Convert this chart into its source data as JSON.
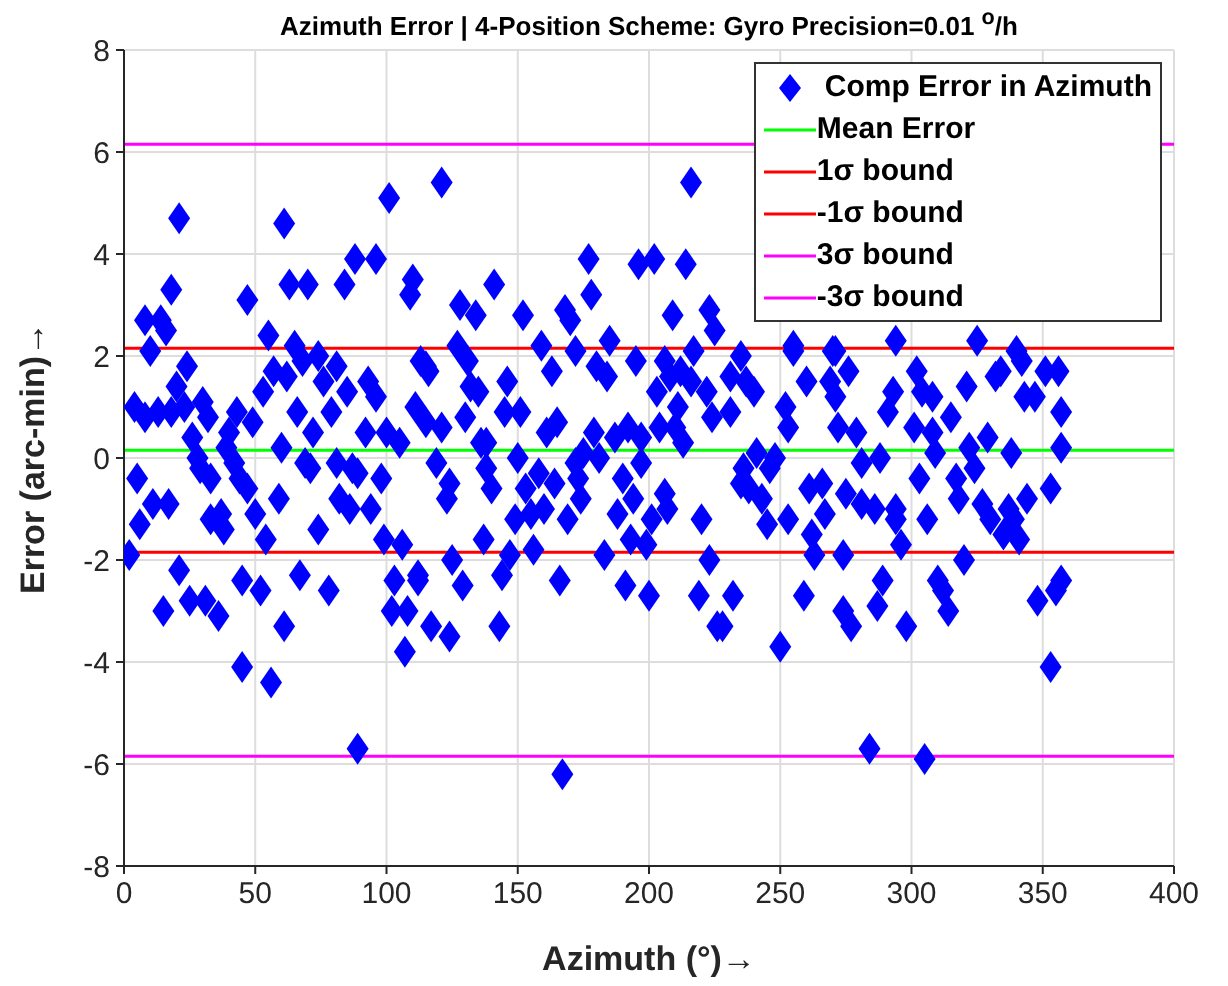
{
  "chart_data": {
    "type": "scatter",
    "title": "Azimuth Error | 4-Position Scheme: Gyro Precision=0.01 $^{o}$/h",
    "xlabel": "Azimuth (°)→",
    "ylabel": "Error (arc-min)→",
    "xlim": [
      0,
      400
    ],
    "xticks": [
      0,
      50,
      100,
      150,
      200,
      250,
      300,
      350,
      400
    ],
    "ylim": [
      -8,
      8
    ],
    "yticks": [
      -8,
      -6,
      -4,
      -2,
      0,
      2,
      4,
      6,
      8
    ],
    "grid": true,
    "legend": "top right",
    "marker": "diamond",
    "series": [
      {
        "name": "Comp Error in Azimuth",
        "color": "#0000ff",
        "x": [
          4,
          2,
          5,
          6,
          8,
          10,
          8,
          11,
          13,
          14,
          15,
          16,
          17,
          18,
          18,
          20,
          21,
          21,
          23,
          24,
          25,
          26,
          28,
          29,
          30,
          31,
          32,
          33,
          33,
          36,
          37,
          38,
          39,
          40,
          42,
          43,
          44,
          45,
          45,
          47,
          47,
          50,
          49,
          52,
          53,
          54,
          55,
          56,
          57,
          59,
          60,
          61,
          61,
          62,
          63,
          65,
          66,
          67,
          68,
          69,
          70,
          71,
          72,
          74,
          74,
          76,
          78,
          79,
          81,
          81,
          82,
          84,
          85,
          86,
          88,
          89,
          87,
          89,
          92,
          93,
          94,
          96,
          96,
          98,
          99,
          101,
          100,
          102,
          103,
          105,
          106,
          107,
          108,
          109,
          110,
          111,
          112,
          113,
          121,
          112,
          115,
          116,
          115,
          117,
          119,
          121,
          123,
          124,
          124,
          125,
          127,
          128,
          129,
          130,
          131,
          132,
          134,
          135,
          136,
          137,
          138,
          138,
          140,
          141,
          143,
          144,
          145,
          146,
          147,
          149,
          150,
          151,
          152,
          153,
          155,
          156,
          158,
          159,
          160,
          161,
          163,
          164,
          165,
          166,
          167,
          169,
          168,
          170,
          172,
          172,
          173,
          174,
          175,
          177,
          178,
          179,
          180,
          181,
          183,
          184,
          185,
          187,
          188,
          190,
          191,
          192,
          194,
          193,
          195,
          196,
          197,
          197,
          199,
          200,
          202,
          201,
          203,
          204,
          206,
          206,
          207,
          208,
          209,
          210,
          211,
          212,
          213,
          214,
          216,
          216,
          217,
          219,
          220,
          222,
          223,
          223,
          224,
          225,
          226,
          228,
          232,
          231,
          231,
          235,
          235,
          236,
          237,
          238,
          240,
          241,
          243,
          245,
          246,
          248,
          250,
          252,
          253,
          253,
          255,
          259,
          260,
          261,
          262,
          263,
          266,
          267,
          269,
          270,
          271,
          272,
          274,
          274,
          275,
          277,
          276,
          279,
          281,
          281,
          284,
          286,
          287,
          288,
          289,
          291,
          293,
          294,
          294,
          296,
          298,
          301,
          302,
          303,
          304,
          305,
          306,
          308,
          308,
          309,
          310,
          312,
          314,
          315,
          317,
          318,
          320,
          321,
          322,
          324,
          327,
          329,
          330,
          332,
          334,
          335,
          337,
          338,
          339,
          341,
          343,
          344,
          342,
          347,
          348,
          353,
          355,
          353,
          357,
          357,
          357,
          356,
          349,
          255,
          271,
          294,
          325,
          340,
          351
        ],
        "values": [
          1.0,
          -1.9,
          -0.4,
          -1.3,
          2.7,
          2.1,
          0.8,
          -0.9,
          0.9,
          2.7,
          -3.0,
          2.5,
          -0.9,
          0.9,
          3.3,
          1.4,
          -2.2,
          4.7,
          1.0,
          1.8,
          -2.8,
          0.4,
          0.0,
          -0.2,
          1.1,
          -2.8,
          0.8,
          -0.4,
          -1.2,
          -3.1,
          -1.1,
          -1.4,
          0.2,
          0.5,
          -0.1,
          0.9,
          -0.4,
          -2.4,
          -4.1,
          -0.6,
          3.1,
          -1.1,
          0.7,
          -2.6,
          1.3,
          -1.6,
          2.4,
          -4.4,
          1.7,
          -0.8,
          0.2,
          -3.3,
          4.6,
          1.6,
          3.4,
          2.2,
          0.9,
          -2.3,
          1.9,
          -0.1,
          3.4,
          -0.2,
          0.5,
          2.0,
          -1.4,
          1.5,
          -2.6,
          0.9,
          1.8,
          -0.1,
          -0.8,
          3.4,
          1.3,
          -1.0,
          3.9,
          -5.7,
          -0.2,
          -0.3,
          0.5,
          1.5,
          -1.0,
          3.9,
          1.2,
          -0.4,
          -1.6,
          5.1,
          0.5,
          -3.0,
          -2.4,
          0.3,
          -1.7,
          -3.8,
          -3.0,
          3.2,
          3.5,
          1.0,
          -2.4,
          1.9,
          5.4,
          -2.3,
          1.8,
          1.7,
          0.7,
          -3.3,
          -0.1,
          0.6,
          -0.8,
          -0.5,
          -3.5,
          -2.0,
          2.2,
          3.0,
          -2.5,
          0.8,
          1.9,
          1.4,
          2.8,
          1.3,
          0.3,
          -1.6,
          0.3,
          -0.2,
          -0.6,
          3.4,
          -3.3,
          -2.3,
          0.9,
          1.5,
          -1.9,
          -1.2,
          0.0,
          0.9,
          2.8,
          -0.6,
          -1.1,
          -1.8,
          -0.3,
          2.2,
          -1.0,
          0.5,
          1.7,
          -0.5,
          0.7,
          -2.4,
          -6.2,
          -1.2,
          2.9,
          2.7,
          2.1,
          -0.1,
          -0.4,
          -0.8,
          0.1,
          3.9,
          3.2,
          0.5,
          1.8,
          0.0,
          -1.9,
          1.6,
          2.3,
          0.4,
          -1.1,
          -0.4,
          -2.5,
          0.6,
          -0.8,
          -1.6,
          1.9,
          3.8,
          -0.1,
          0.4,
          -1.7,
          -2.7,
          3.9,
          -1.2,
          1.3,
          0.6,
          1.9,
          -0.7,
          -1.0,
          1.6,
          2.8,
          0.6,
          1.0,
          1.7,
          0.3,
          3.8,
          5.4,
          1.5,
          2.1,
          -2.7,
          -1.2,
          1.3,
          2.9,
          -2.0,
          0.8,
          2.5,
          -3.3,
          -3.3,
          -2.7,
          1.6,
          0.9,
          2.0,
          -0.5,
          -0.2,
          1.5,
          -0.6,
          1.3,
          0.1,
          -0.8,
          -1.3,
          -0.2,
          0.0,
          -3.7,
          1.0,
          0.6,
          -1.2,
          2.2,
          -2.7,
          1.5,
          -0.6,
          -1.5,
          -1.9,
          -0.5,
          -1.1,
          1.5,
          2.1,
          1.2,
          0.6,
          -3.0,
          -1.9,
          -0.7,
          -3.3,
          1.7,
          0.5,
          -0.1,
          -0.9,
          -5.7,
          -1.0,
          -2.9,
          0.0,
          -2.4,
          0.9,
          1.3,
          -1.2,
          -1.0,
          -1.7,
          -3.3,
          0.6,
          1.7,
          -0.4,
          1.3,
          -5.9,
          -1.2,
          1.2,
          0.5,
          0.1,
          -2.4,
          -2.6,
          -3.0,
          0.8,
          -0.4,
          -0.8,
          -2.0,
          1.4,
          0.2,
          -0.2,
          -0.9,
          0.4,
          -1.2,
          1.6,
          1.7,
          -1.5,
          -1.0,
          0.1,
          -1.2,
          -1.6,
          1.2,
          -0.8,
          1.9,
          1.2,
          -2.8,
          -0.6,
          -2.6,
          -4.1,
          -2.4,
          0.2,
          0.9,
          1.7,
          null,
          2.1,
          2.1,
          2.3,
          2.3,
          2.1,
          1.7
        ]
      }
    ],
    "ref_lines": [
      {
        "axis": "y",
        "value": 0.15,
        "label": "Mean Error",
        "color": "#00ff00"
      },
      {
        "axis": "y",
        "value": 2.15,
        "label": "1σ bound",
        "color": "#ff0000"
      },
      {
        "axis": "y",
        "value": -1.85,
        "label": "-1σ bound",
        "color": "#ff0000"
      },
      {
        "axis": "y",
        "value": 6.15,
        "label": "3σ bound",
        "color": "#ff00ff"
      },
      {
        "axis": "y",
        "value": -5.85,
        "label": "-3σ bound",
        "color": "#ff00ff"
      }
    ]
  }
}
